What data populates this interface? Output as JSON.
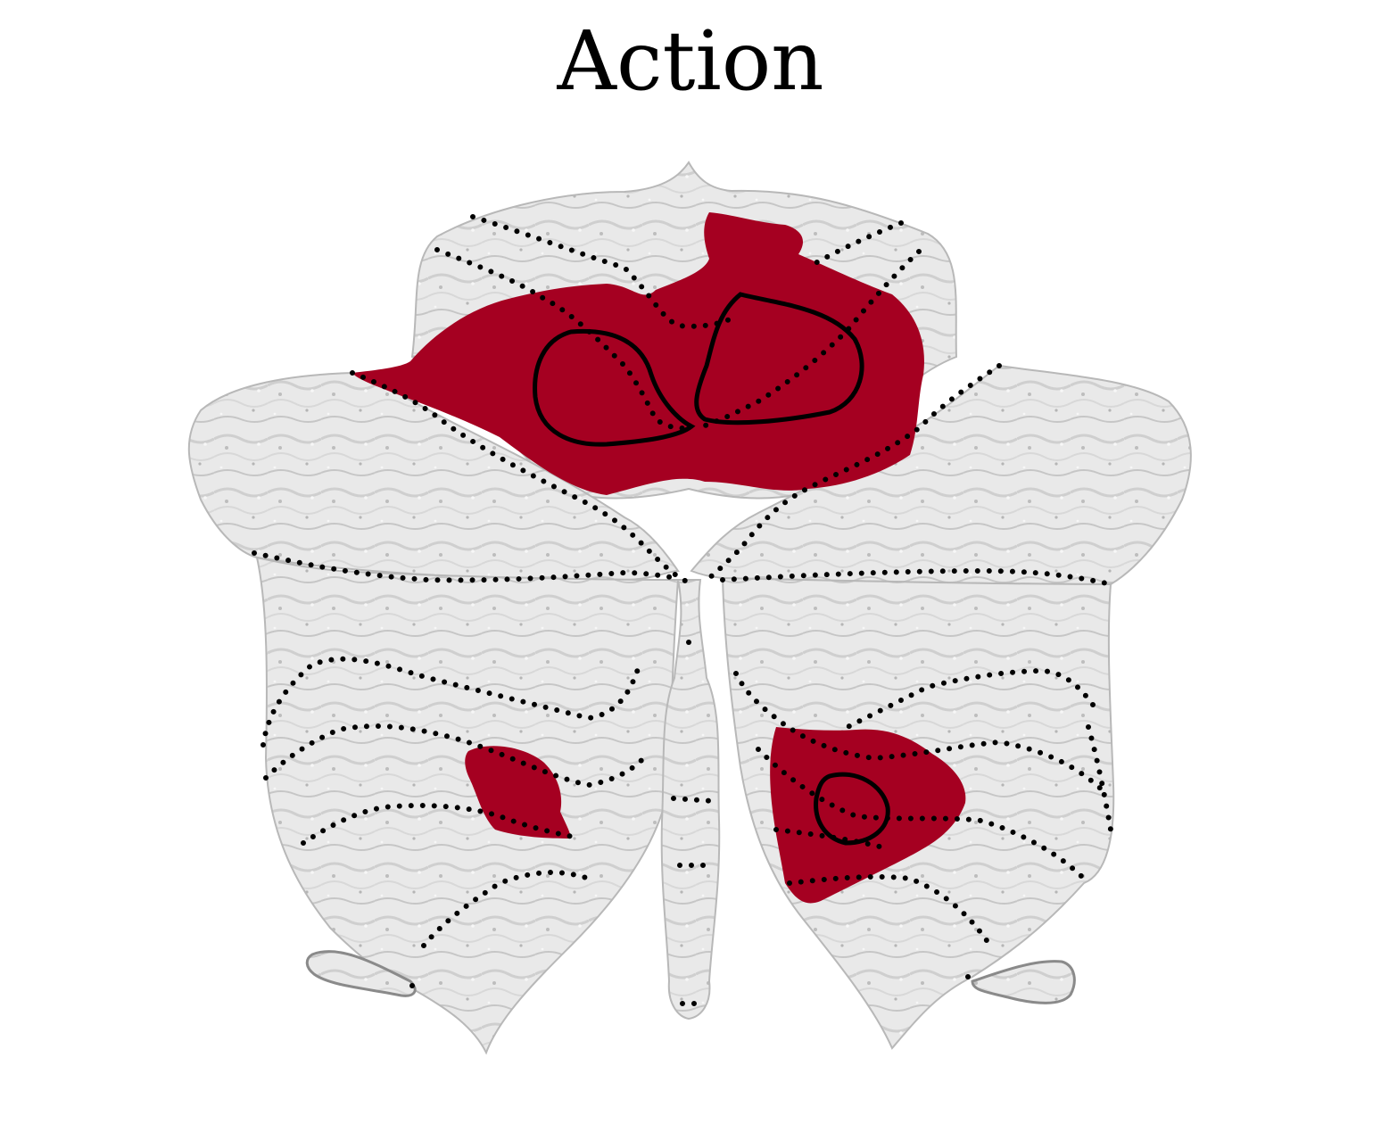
{
  "title": "Action",
  "colors": {
    "background": "#ffffff",
    "surface": "#e6e6e6",
    "surface_light": "#f3f3f3",
    "surface_shadow": "#9a9a9a",
    "activation": "#a50021",
    "boundary": "#000000",
    "contour": "#000000"
  }
}
